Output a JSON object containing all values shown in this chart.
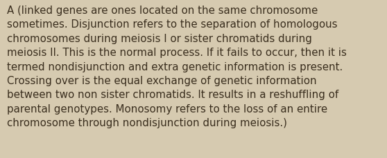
{
  "background_color": "#d6cab0",
  "text_color": "#3a2e1e",
  "lines": [
    "A (linked genes are ones located on the same chromosome",
    "sometimes. Disjunction refers to the separation of homologous",
    "chromosomes during meiosis I or sister chromatids during",
    "meiosis II. This is the normal process. If it fails to occur, then it is",
    "termed nondisjunction and extra genetic information is present.",
    "Crossing over is the equal exchange of genetic information",
    "between two non sister chromatids. It results in a reshuffling of",
    "parental genotypes. Monosomy refers to the loss of an entire",
    "chromosome through nondisjunction during meiosis.)"
  ],
  "font_size": 10.8,
  "font_family": "DejaVu Sans",
  "figwidth": 5.58,
  "figheight": 2.3,
  "dpi": 100
}
